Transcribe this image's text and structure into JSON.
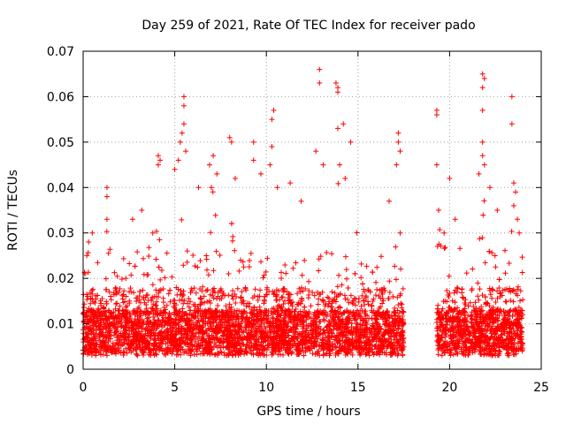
{
  "chart_data": {
    "type": "scatter",
    "title": "Day 259 of 2021, Rate Of TEC Index for receiver pado",
    "xlabel": "GPS time / hours",
    "ylabel": "ROTI / TECUs",
    "xlim": [
      0,
      25
    ],
    "ylim": [
      0,
      0.07
    ],
    "x_ticks": [
      0,
      5,
      10,
      15,
      20,
      25
    ],
    "y_ticks": [
      0,
      0.01,
      0.02,
      0.03,
      0.04,
      0.05,
      0.06,
      0.07
    ],
    "x_tick_labels": [
      "0",
      "5",
      "10",
      "15",
      "20",
      "25"
    ],
    "y_tick_labels": [
      "0",
      "0.01",
      "0.02",
      "0.03",
      "0.04",
      "0.05",
      "0.06",
      "0.07"
    ],
    "grid": true,
    "marker": "plus",
    "color": "#ff0000",
    "data_gap_hours": [
      17.5,
      19.3
    ],
    "series": [
      {
        "points": [
          [
            0.1,
            0.021
          ],
          [
            0.2,
            0.025
          ],
          [
            0.3,
            0.028
          ],
          [
            0.5,
            0.03
          ],
          [
            1.3,
            0.04
          ],
          [
            1.3,
            0.038
          ],
          [
            1.3,
            0.033
          ],
          [
            2.7,
            0.033
          ],
          [
            3.2,
            0.035
          ],
          [
            3.8,
            0.03
          ],
          [
            4.1,
            0.047
          ],
          [
            4.2,
            0.046
          ],
          [
            4.1,
            0.045
          ],
          [
            5.0,
            0.044
          ],
          [
            5.4,
            0.052
          ],
          [
            5.5,
            0.054
          ],
          [
            5.5,
            0.06
          ],
          [
            5.5,
            0.058
          ],
          [
            5.3,
            0.05
          ],
          [
            5.6,
            0.048
          ],
          [
            5.2,
            0.046
          ],
          [
            6.3,
            0.04
          ],
          [
            6.9,
            0.045
          ],
          [
            7.1,
            0.047
          ],
          [
            7.3,
            0.043
          ],
          [
            7.0,
            0.04
          ],
          [
            8.0,
            0.051
          ],
          [
            8.1,
            0.05
          ],
          [
            8.3,
            0.042
          ],
          [
            9.3,
            0.05
          ],
          [
            9.3,
            0.046
          ],
          [
            9.7,
            0.043
          ],
          [
            10.2,
            0.045
          ],
          [
            10.3,
            0.055
          ],
          [
            10.4,
            0.057
          ],
          [
            10.3,
            0.049
          ],
          [
            10.6,
            0.04
          ],
          [
            11.3,
            0.041
          ],
          [
            11.9,
            0.037
          ],
          [
            12.9,
            0.066
          ],
          [
            12.9,
            0.063
          ],
          [
            12.7,
            0.048
          ],
          [
            13.1,
            0.045
          ],
          [
            13.8,
            0.063
          ],
          [
            13.9,
            0.062
          ],
          [
            13.9,
            0.061
          ],
          [
            14.2,
            0.054
          ],
          [
            13.9,
            0.053
          ],
          [
            14.6,
            0.05
          ],
          [
            14.0,
            0.045
          ],
          [
            14.3,
            0.042
          ],
          [
            16.7,
            0.037
          ],
          [
            17.2,
            0.052
          ],
          [
            17.2,
            0.05
          ],
          [
            17.3,
            0.048
          ],
          [
            17.1,
            0.045
          ],
          [
            17.3,
            0.03
          ],
          [
            19.3,
            0.057
          ],
          [
            19.3,
            0.056
          ],
          [
            19.3,
            0.045
          ],
          [
            19.4,
            0.035
          ],
          [
            19.7,
            0.03
          ],
          [
            20.0,
            0.042
          ],
          [
            20.3,
            0.033
          ],
          [
            21.6,
            0.043
          ],
          [
            21.8,
            0.065
          ],
          [
            21.9,
            0.064
          ],
          [
            21.8,
            0.062
          ],
          [
            21.8,
            0.057
          ],
          [
            21.8,
            0.05
          ],
          [
            21.8,
            0.047
          ],
          [
            21.9,
            0.045
          ],
          [
            22.2,
            0.04
          ],
          [
            22.6,
            0.035
          ],
          [
            23.4,
            0.06
          ],
          [
            23.4,
            0.054
          ],
          [
            23.5,
            0.041
          ],
          [
            23.6,
            0.039
          ],
          [
            23.5,
            0.036
          ],
          [
            23.7,
            0.033
          ],
          [
            23.8,
            0.03
          ]
        ]
      }
    ]
  }
}
